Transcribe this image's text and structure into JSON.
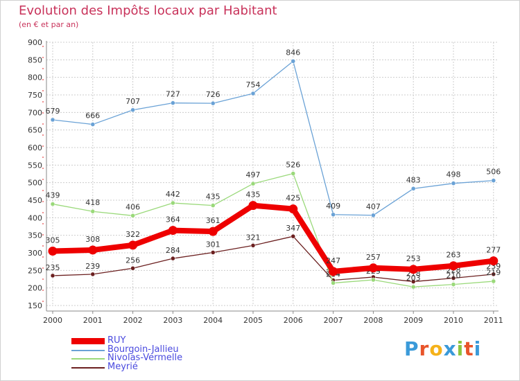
{
  "header": {
    "title": "Evolution des Impôts locaux par Habitant",
    "subtitle": "(en € et par an)"
  },
  "logo": {
    "letters": [
      "P",
      "r",
      "o",
      "x",
      "i",
      "t",
      "i"
    ],
    "colors": [
      "#3a9ad9",
      "#e8542a",
      "#f5b21a",
      "#3a9ad9",
      "#8cc63f",
      "#e8542a",
      "#3a9ad9"
    ]
  },
  "chart_data": {
    "type": "line",
    "categories": [
      "2000",
      "2001",
      "2002",
      "2003",
      "2004",
      "2005",
      "2006",
      "2007",
      "2008",
      "2009",
      "2010",
      "2011"
    ],
    "ylim": [
      150,
      900
    ],
    "yticks": [
      150,
      200,
      250,
      300,
      350,
      400,
      450,
      500,
      550,
      600,
      650,
      700,
      750,
      800,
      850,
      900
    ],
    "grid": true,
    "legend_position": "bottom-left",
    "series": [
      {
        "name": "RUY",
        "color": "#ee0000",
        "values": [
          305,
          308,
          322,
          364,
          361,
          435,
          425,
          247,
          257,
          253,
          263,
          277
        ]
      },
      {
        "name": "Bourgoin-Jallieu",
        "color": "#6aa2d6",
        "values": [
          679,
          666,
          707,
          727,
          726,
          754,
          846,
          409,
          407,
          483,
          498,
          506
        ]
      },
      {
        "name": "Nivolas-Vermelle",
        "color": "#9ad97a",
        "values": [
          439,
          418,
          406,
          442,
          435,
          497,
          526,
          214,
          223,
          203,
          210,
          219
        ]
      },
      {
        "name": "Meyrié",
        "color": "#6b1f1f",
        "values": [
          235,
          239,
          256,
          284,
          301,
          321,
          347,
          222,
          231,
          218,
          228,
          239
        ]
      }
    ]
  }
}
